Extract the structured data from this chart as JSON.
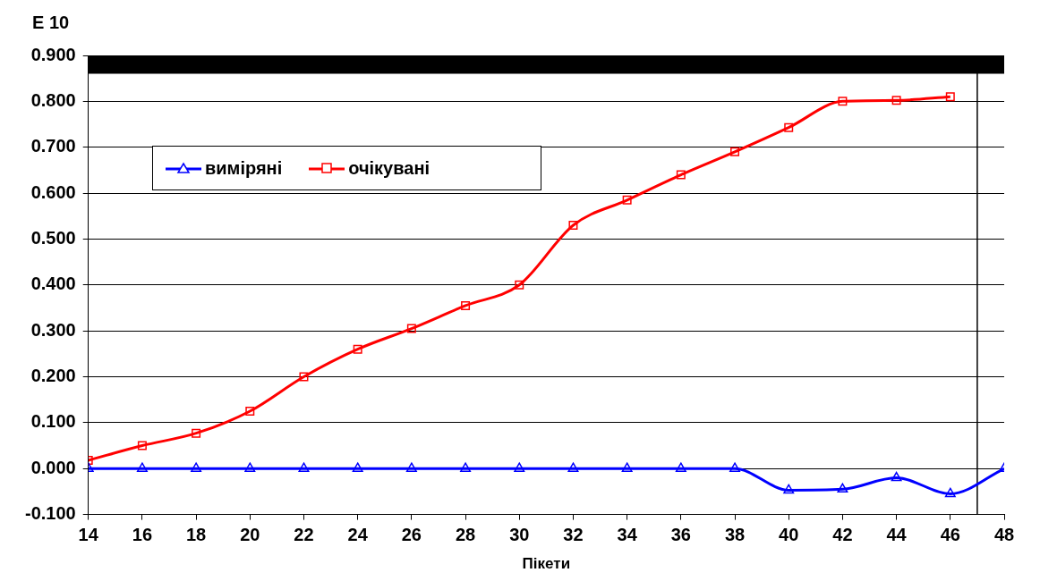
{
  "chart_data": {
    "type": "line",
    "ylabel": "E 10",
    "xlabel": "Пікети",
    "x": [
      14,
      16,
      18,
      20,
      22,
      24,
      26,
      28,
      30,
      32,
      34,
      36,
      38,
      40,
      42,
      44,
      46,
      48
    ],
    "series": [
      {
        "name": "виміряні",
        "color": "#0000ff",
        "marker": "triangle",
        "values": [
          0,
          0,
          0,
          0,
          0,
          0,
          0,
          0,
          0,
          0,
          0,
          0,
          0,
          -0.047,
          -0.045,
          -0.02,
          -0.055,
          0
        ]
      },
      {
        "name": "очікувані",
        "color": "#ff0000",
        "marker": "square",
        "values": [
          0.018,
          0.05,
          0.077,
          0.125,
          0.2,
          0.26,
          0.305,
          0.355,
          0.4,
          0.53,
          0.585,
          0.64,
          0.69,
          0.743,
          0.8,
          0.802,
          0.81,
          null
        ]
      }
    ],
    "xlim": [
      14,
      48
    ],
    "xticks": [
      14,
      16,
      18,
      20,
      22,
      24,
      26,
      28,
      30,
      32,
      34,
      36,
      38,
      40,
      42,
      44,
      46,
      48
    ],
    "ylim": [
      -0.1,
      0.9
    ],
    "yticks": [
      {
        "value": -0.1,
        "label": "-0.100"
      },
      {
        "value": 0,
        "label": "0.000"
      },
      {
        "value": 0.1,
        "label": "0.100"
      },
      {
        "value": 0.2,
        "label": "0.200"
      },
      {
        "value": 0.3,
        "label": "0.300"
      },
      {
        "value": 0.4,
        "label": "0.400"
      },
      {
        "value": 0.5,
        "label": "0.500"
      },
      {
        "value": 0.6,
        "label": "0.600"
      },
      {
        "value": 0.7,
        "label": "0.700"
      },
      {
        "value": 0.8,
        "label": "0.800"
      },
      {
        "value": 0.9,
        "label": "0.900"
      }
    ],
    "grid": "y",
    "legend": "top left",
    "ref_lines": [
      {
        "axis": "x",
        "value": 47,
        "color": "#000000"
      }
    ],
    "bands": [
      {
        "axis": "y",
        "from": 0.86,
        "to": 0.9,
        "color": "#000000"
      }
    ]
  }
}
